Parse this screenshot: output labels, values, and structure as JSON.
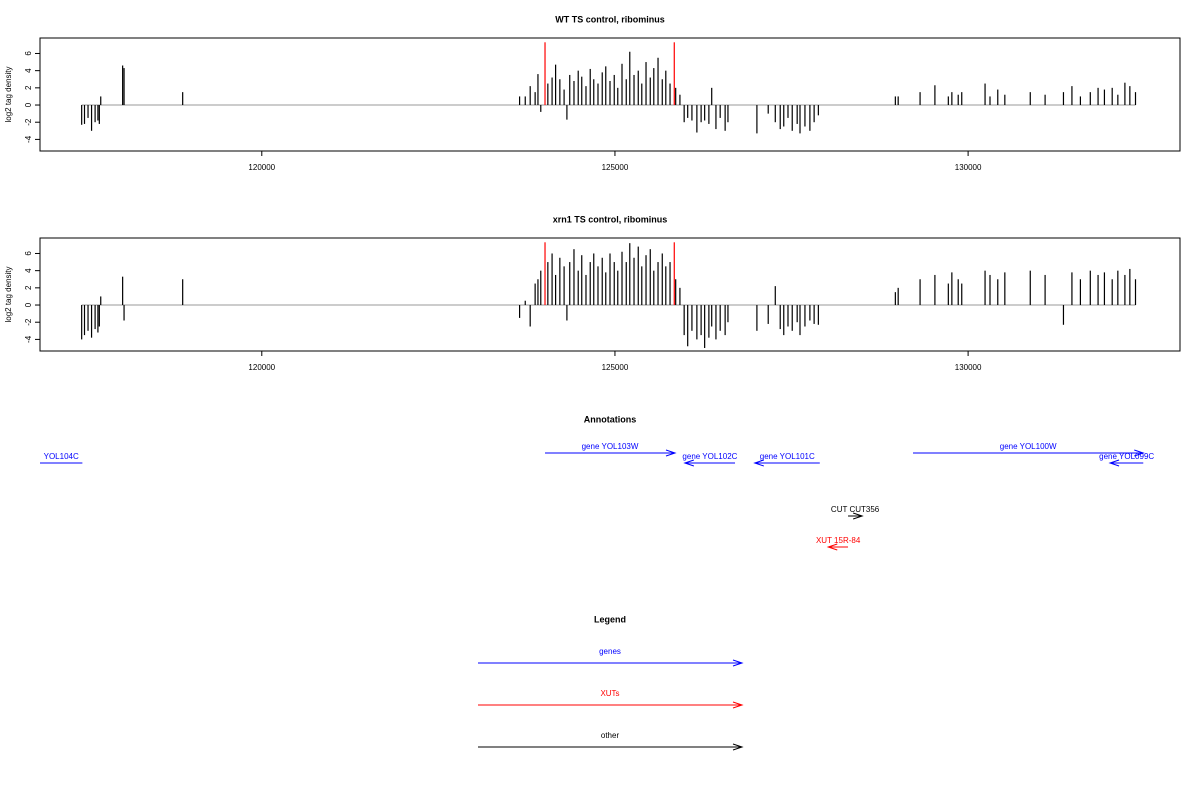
{
  "chart_data": [
    {
      "type": "bar",
      "title": "WT TS control, ribominus",
      "ylabel": "log2 tag density",
      "xlim": [
        116860,
        133000
      ],
      "ylim": [
        -5.35,
        7.8
      ],
      "xticks": [
        120000,
        125000,
        130000
      ],
      "yticks": [
        -4,
        -2,
        0,
        2,
        4,
        6
      ],
      "color": "#000000",
      "markers": {
        "x": [
          124010,
          125840
        ],
        "height": 7.3,
        "color": "#ff0000"
      },
      "x": [
        117450,
        117490,
        117540,
        117590,
        117640,
        117680,
        117700,
        117720,
        118030,
        118050,
        118880,
        123650,
        123730,
        123800,
        123870,
        123910,
        123950,
        124050,
        124110,
        124160,
        124220,
        124280,
        124320,
        124360,
        124420,
        124480,
        124530,
        124590,
        124650,
        124700,
        124760,
        124820,
        124870,
        124930,
        124990,
        125040,
        125100,
        125160,
        125210,
        125270,
        125330,
        125380,
        125440,
        125500,
        125550,
        125610,
        125670,
        125720,
        125780,
        125860,
        125920,
        125980,
        126030,
        126090,
        126160,
        126220,
        126270,
        126330,
        126370,
        126430,
        126490,
        126560,
        126600,
        127010,
        127170,
        127270,
        127340,
        127390,
        127450,
        127510,
        127580,
        127620,
        127690,
        127760,
        127820,
        127880,
        128970,
        129010,
        129320,
        129530,
        129720,
        129770,
        129860,
        129910,
        130240,
        130310,
        130420,
        130520,
        130880,
        131090,
        131350,
        131470,
        131590,
        131730,
        131840,
        131930,
        132040,
        132120,
        132220,
        132290,
        132370
      ],
      "values": [
        -2.3,
        -2.2,
        -1.5,
        -3.0,
        -2.0,
        -1.8,
        -2.2,
        1.0,
        4.6,
        4.3,
        1.5,
        1.0,
        1.0,
        2.2,
        1.5,
        3.6,
        -0.8,
        2.5,
        3.2,
        4.7,
        3.0,
        1.8,
        -1.7,
        3.5,
        2.8,
        4.0,
        3.3,
        2.2,
        4.2,
        3.0,
        2.5,
        3.8,
        4.5,
        2.8,
        3.5,
        2.0,
        4.8,
        3.0,
        6.2,
        3.5,
        4.0,
        2.5,
        5.0,
        3.2,
        4.3,
        5.5,
        3.0,
        4.0,
        2.5,
        2.0,
        1.2,
        -2.0,
        -1.5,
        -1.8,
        -3.2,
        -2.0,
        -1.8,
        -2.2,
        2.0,
        -2.8,
        -1.5,
        -3.0,
        -2.0,
        -3.3,
        -1.0,
        -2.0,
        -2.8,
        -2.5,
        -1.5,
        -3.0,
        -2.2,
        -3.3,
        -2.5,
        -3.0,
        -2.0,
        -1.2,
        1.0,
        1.0,
        1.5,
        2.3,
        1.0,
        1.5,
        1.2,
        1.5,
        2.5,
        1.0,
        1.8,
        1.2,
        1.5,
        1.2,
        1.5,
        2.2,
        1.0,
        1.5,
        2.0,
        1.8,
        2.0,
        1.2,
        2.6,
        2.2,
        1.5
      ]
    },
    {
      "type": "bar",
      "title": "xrn1 TS control, ribominus",
      "ylabel": "log2 tag density",
      "xlim": [
        116860,
        133000
      ],
      "ylim": [
        -5.35,
        7.8
      ],
      "xticks": [
        120000,
        125000,
        130000
      ],
      "yticks": [
        -4,
        -2,
        0,
        2,
        4,
        6
      ],
      "color": "#000000",
      "markers": {
        "x": [
          124010,
          125840
        ],
        "height": 7.3,
        "color": "#ff0000"
      },
      "x": [
        117450,
        117490,
        117540,
        117590,
        117640,
        117680,
        117700,
        117720,
        118030,
        118050,
        118880,
        123650,
        123730,
        123800,
        123870,
        123910,
        123950,
        124050,
        124110,
        124160,
        124220,
        124280,
        124320,
        124360,
        124420,
        124480,
        124530,
        124590,
        124650,
        124700,
        124760,
        124820,
        124870,
        124930,
        124990,
        125040,
        125100,
        125160,
        125210,
        125270,
        125330,
        125380,
        125440,
        125500,
        125550,
        125610,
        125670,
        125720,
        125780,
        125860,
        125920,
        125980,
        126030,
        126090,
        126160,
        126220,
        126270,
        126330,
        126370,
        126430,
        126490,
        126560,
        126600,
        127010,
        127170,
        127270,
        127340,
        127390,
        127450,
        127510,
        127580,
        127620,
        127690,
        127760,
        127820,
        127880,
        128970,
        129010,
        129320,
        129530,
        129720,
        129770,
        129860,
        129910,
        130240,
        130310,
        130420,
        130520,
        130880,
        131090,
        131350,
        131470,
        131590,
        131730,
        131840,
        131930,
        132040,
        132120,
        132220,
        132290,
        132370
      ],
      "values": [
        -4.0,
        -3.5,
        -3.0,
        -3.8,
        -2.8,
        -3.2,
        -2.5,
        1.0,
        3.3,
        -1.8,
        3.0,
        -1.5,
        0.5,
        -2.5,
        2.5,
        3.0,
        4.0,
        5.0,
        6.0,
        3.5,
        5.5,
        4.5,
        -1.8,
        5.0,
        6.5,
        4.0,
        5.8,
        3.5,
        5.0,
        6.0,
        4.5,
        5.5,
        3.8,
        6.0,
        5.0,
        4.0,
        6.2,
        5.0,
        7.2,
        5.5,
        6.8,
        4.5,
        5.8,
        6.5,
        4.0,
        5.0,
        6.0,
        4.5,
        5.0,
        3.0,
        2.0,
        -3.5,
        -4.8,
        -3.0,
        -4.0,
        -3.5,
        -5.0,
        -3.8,
        -2.5,
        -4.0,
        -3.0,
        -3.5,
        -2.0,
        -3.0,
        -2.2,
        2.2,
        -2.8,
        -3.5,
        -2.5,
        -3.0,
        -2.0,
        -3.5,
        -2.5,
        -1.8,
        -2.2,
        -2.3,
        1.5,
        2.0,
        3.0,
        3.5,
        2.5,
        3.8,
        3.0,
        2.5,
        4.0,
        3.5,
        3.0,
        3.8,
        4.0,
        3.5,
        -2.3,
        3.8,
        3.0,
        4.0,
        3.5,
        3.8,
        3.0,
        4.0,
        3.5,
        4.2,
        3.0
      ]
    }
  ],
  "annotations": {
    "title": "Annotations",
    "xlim": [
      116860,
      133000
    ],
    "features": [
      {
        "label": "YOL104C",
        "start": 116860,
        "end": 117460,
        "strand": "-",
        "type": "genes"
      },
      {
        "label": "gene YOL103W",
        "start": 124010,
        "end": 125850,
        "strand": "+",
        "type": "genes"
      },
      {
        "label": "gene YOL102C",
        "start": 125990,
        "end": 126700,
        "strand": "-",
        "type": "genes"
      },
      {
        "label": "gene YOL101C",
        "start": 126980,
        "end": 127900,
        "strand": "-",
        "type": "genes"
      },
      {
        "label": "gene YOL100W",
        "start": 129220,
        "end": 132480,
        "strand": "+",
        "type": "genes"
      },
      {
        "label": "gene YOL099C",
        "start": 132010,
        "end": 132480,
        "strand": "-",
        "type": "genes"
      },
      {
        "label": "CUT CUT356",
        "start": 128300,
        "end": 128500,
        "strand": "+",
        "type": "other"
      },
      {
        "label": "XUT 15R-84",
        "start": 128020,
        "end": 128300,
        "strand": "-",
        "type": "XUTs"
      }
    ]
  },
  "legend": {
    "title": "Legend",
    "items": [
      {
        "name": "genes",
        "color": "#0000ff"
      },
      {
        "name": "XUTs",
        "color": "#ff0000"
      },
      {
        "name": "other",
        "color": "#000000"
      }
    ]
  }
}
